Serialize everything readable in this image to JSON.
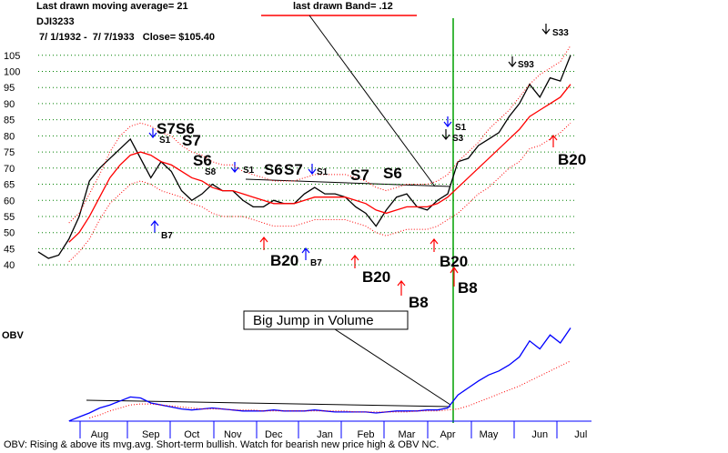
{
  "chart_data": [
    {
      "type": "line",
      "title": "Last drawn moving average= 21",
      "subtitle": "DJI3233",
      "date_range": " 7/ 1/1932 -  7/ 7/1933   Close= $105.40",
      "band_label": "last drawn Band= .12",
      "categories": [
        null,
        null,
        null,
        null,
        null,
        null,
        "Aug",
        null,
        null,
        null,
        null,
        "Sep",
        null,
        null,
        null,
        "Oct",
        null,
        null,
        null,
        "Nov",
        null,
        null,
        null,
        "Dec",
        null,
        null,
        null,
        null,
        "Jan",
        null,
        null,
        null,
        "Feb",
        null,
        null,
        null,
        "Mar",
        null,
        null,
        null,
        "Apr",
        null,
        null,
        null,
        "May",
        null,
        null,
        null,
        null,
        "Jun",
        null,
        null,
        null,
        "Jul"
      ],
      "series": [
        {
          "color": "#000000",
          "style": "solid",
          "values": [
            44,
            42,
            43,
            48,
            55,
            66,
            70,
            73,
            76,
            79,
            73,
            67,
            72,
            69,
            63,
            60,
            62,
            65,
            63,
            63,
            60,
            58,
            58,
            60,
            59,
            59,
            62,
            64,
            62,
            62,
            61,
            58,
            56,
            52,
            57,
            61,
            62,
            58,
            57,
            60,
            62,
            72,
            73,
            77,
            79,
            81,
            86,
            90,
            96,
            92,
            98,
            97,
            105,
            null
          ]
        },
        {
          "color": "#ff0000",
          "style": "solid",
          "values": [
            null,
            null,
            null,
            47,
            50,
            55,
            61,
            67,
            71,
            74,
            75,
            74,
            72,
            71,
            69,
            67,
            66,
            64,
            63,
            63,
            62,
            61,
            60,
            59,
            59,
            59,
            60,
            61,
            61,
            61,
            61,
            60,
            59,
            57,
            56,
            57,
            58,
            58,
            58,
            59,
            61,
            64,
            67,
            70,
            73,
            76,
            79,
            82,
            86,
            88,
            90,
            92,
            96,
            null
          ]
        },
        {
          "color": "#ff0000",
          "style": "dotted",
          "values": [
            null,
            null,
            null,
            53,
            56,
            62,
            68,
            75,
            80,
            83,
            84,
            83,
            81,
            80,
            77,
            75,
            74,
            72,
            71,
            71,
            69,
            68,
            67,
            66,
            66,
            66,
            67,
            68,
            68,
            68,
            68,
            67,
            66,
            64,
            63,
            64,
            65,
            65,
            65,
            66,
            68,
            72,
            75,
            78,
            82,
            85,
            88,
            92,
            96,
            99,
            101,
            103,
            108,
            null
          ]
        },
        {
          "color": "#ff0000",
          "style": "dotted",
          "values": [
            null,
            null,
            null,
            41,
            44,
            48,
            54,
            59,
            62,
            65,
            66,
            65,
            63,
            62,
            61,
            59,
            58,
            56,
            55,
            55,
            55,
            54,
            53,
            52,
            52,
            52,
            53,
            54,
            54,
            54,
            54,
            53,
            52,
            50,
            49,
            50,
            51,
            51,
            51,
            52,
            54,
            56,
            59,
            62,
            64,
            67,
            70,
            72,
            76,
            77,
            79,
            81,
            84,
            null
          ]
        }
      ],
      "ylim": [
        37.5,
        116.5
      ],
      "yticks": [
        40,
        45,
        50,
        55,
        60,
        65,
        70,
        75,
        80,
        85,
        90,
        95,
        100,
        105
      ],
      "grid": true,
      "grid_color": "#008000",
      "annotations": [
        "S7",
        "S6",
        "S7",
        "S6",
        "S6",
        "S7",
        "S7",
        "S6",
        "B20",
        "B20",
        "B8",
        "B20",
        "B8",
        "B20",
        "S1",
        "S8",
        "S1",
        "S1",
        "B7",
        "B7",
        "S1",
        "S3",
        "S93",
        "S33"
      ]
    },
    {
      "type": "line",
      "title": "OBV",
      "series": [
        {
          "color": "#0000ff",
          "style": "solid",
          "values": [
            null,
            null,
            null,
            2,
            6,
            10,
            15,
            18,
            22,
            26,
            25,
            20,
            18,
            16,
            14,
            13,
            14,
            15,
            14,
            13,
            12,
            12,
            12,
            13,
            12,
            12,
            12,
            13,
            12,
            11,
            11,
            11,
            11,
            10,
            11,
            12,
            12,
            12,
            13,
            13,
            15,
            28,
            35,
            42,
            48,
            52,
            58,
            66,
            82,
            74,
            88,
            80,
            95,
            null
          ]
        },
        {
          "color": "#ff0000",
          "style": "dotted",
          "values": [
            null,
            null,
            null,
            null,
            null,
            5,
            8,
            12,
            15,
            18,
            19,
            19,
            18,
            17,
            16,
            15,
            14,
            14,
            14,
            13,
            13,
            13,
            12,
            12,
            12,
            12,
            12,
            12,
            12,
            12,
            12,
            11,
            11,
            11,
            11,
            11,
            11,
            12,
            12,
            12,
            13,
            14,
            17,
            21,
            25,
            29,
            33,
            37,
            42,
            47,
            52,
            57,
            62,
            null
          ]
        }
      ],
      "ylim": [
        0,
        100
      ],
      "annotations": [
        "Big Jump in Volume"
      ],
      "caption": "OBV: Rising & above its mvg.avg. Short-term bullish. Watch for bearish new price high & OBV NC."
    }
  ]
}
